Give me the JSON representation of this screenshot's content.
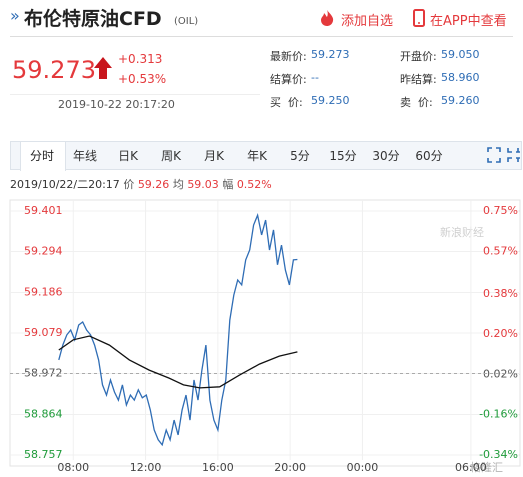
{
  "header": {
    "prefix": "»",
    "title": "布伦特原油CFD",
    "code": "(OIL)",
    "add_watch": "添加自选",
    "open_app": "在APP中查看"
  },
  "quote": {
    "price": "59.273",
    "change": "+0.313",
    "change_pct": "+0.53%",
    "time": "2019-10-22 20:17:20",
    "stats": [
      {
        "label": "最新价:",
        "value": "59.273"
      },
      {
        "label": "开盘价:",
        "value": "59.050"
      },
      {
        "label": "结算价:",
        "value": "--"
      },
      {
        "label": "昨结算:",
        "value": "58.960"
      },
      {
        "label": "买  价:",
        "value": "59.250"
      },
      {
        "label": "卖  价:",
        "value": "59.260"
      }
    ]
  },
  "tabs": [
    "分时",
    "年线",
    "日K",
    "周K",
    "月K",
    "年K",
    "5分",
    "15分",
    "30分",
    "60分"
  ],
  "info": {
    "time": "2019/10/22/二20:17",
    "price_label": "价",
    "price": "59.26",
    "avg_label": "均",
    "avg": "59.03",
    "amp_label": "幅",
    "amp": "0.52%"
  },
  "watermark": "新浪财经",
  "corner_mark": "格隆汇",
  "chart_data": {
    "type": "line",
    "xlim": [
      -1.5,
      25.5
    ],
    "xticks": [
      {
        "value": 2,
        "label": "08:00"
      },
      {
        "value": 6,
        "label": "12:00"
      },
      {
        "value": 10,
        "label": "16:00"
      },
      {
        "value": 14,
        "label": "20:00"
      },
      {
        "value": 18,
        "label": "00:00"
      },
      {
        "value": 24,
        "label": "06:00"
      }
    ],
    "ylim": [
      58.757,
      59.401
    ],
    "yticks": [
      59.401,
      59.294,
      59.186,
      59.079,
      58.972,
      58.864,
      58.757
    ],
    "y2lim": [
      -0.34,
      0.75
    ],
    "y2ticks": [
      {
        "value": 0.75,
        "label": "0.75%"
      },
      {
        "value": 0.57,
        "label": "0.57%"
      },
      {
        "value": 0.38,
        "label": "0.38%"
      },
      {
        "value": 0.2,
        "label": "0.20%"
      },
      {
        "value": 0.02,
        "label": "0.02%"
      },
      {
        "value": -0.16,
        "label": "-0.16%"
      },
      {
        "value": -0.34,
        "label": "-0.34%"
      }
    ],
    "baseline": 58.972,
    "grid": true,
    "up_color": "#e4393c",
    "down_color": "#1f9b3a",
    "flat_color": "#555555",
    "series": [
      {
        "color": "#2f6db5",
        "x": [
          1.2,
          1.42,
          1.64,
          1.86,
          2.08,
          2.3,
          2.52,
          2.74,
          2.96,
          3.18,
          3.4,
          3.62,
          3.84,
          4.06,
          4.28,
          4.5,
          4.72,
          4.94,
          5.16,
          5.38,
          5.6,
          5.82,
          6.04,
          6.26,
          6.48,
          6.7,
          6.92,
          7.14,
          7.36,
          7.58,
          7.8,
          8.02,
          8.24,
          8.46,
          8.68,
          8.9,
          9.12,
          9.34,
          9.56,
          9.78,
          10,
          10.22,
          10.44,
          10.66,
          10.88,
          11.1,
          11.32,
          11.54,
          11.76,
          11.98,
          12.2,
          12.42,
          12.64,
          12.86,
          13.08,
          13.3,
          13.52,
          13.74,
          13.96,
          14.18,
          14.4
        ],
        "values": [
          59.008,
          59.047,
          59.074,
          59.087,
          59.061,
          59.1,
          59.108,
          59.087,
          59.074,
          59.047,
          59.008,
          58.942,
          58.915,
          58.955,
          58.923,
          58.902,
          58.942,
          58.889,
          58.915,
          58.902,
          58.929,
          58.908,
          58.915,
          58.876,
          58.823,
          58.797,
          58.784,
          58.823,
          58.797,
          58.849,
          58.81,
          58.876,
          58.915,
          58.849,
          58.955,
          58.902,
          58.981,
          59.047,
          58.902,
          58.849,
          58.823,
          58.902,
          58.955,
          59.113,
          59.179,
          59.219,
          59.206,
          59.272,
          59.298,
          59.364,
          59.39,
          59.338,
          59.377,
          59.298,
          59.351,
          59.259,
          59.311,
          59.245,
          59.206,
          59.272,
          59.273
        ]
      },
      {
        "color": "#111111",
        "x": [
          1.2,
          2,
          2.9,
          4,
          5.1,
          6.2,
          7.3,
          8.1,
          9,
          10.1,
          11.2,
          12.3,
          13.4,
          14.4
        ],
        "values": [
          59.034,
          59.061,
          59.071,
          59.047,
          59.008,
          58.981,
          58.96,
          58.942,
          58.934,
          58.937,
          58.968,
          58.997,
          59.018,
          59.029
        ]
      }
    ]
  }
}
